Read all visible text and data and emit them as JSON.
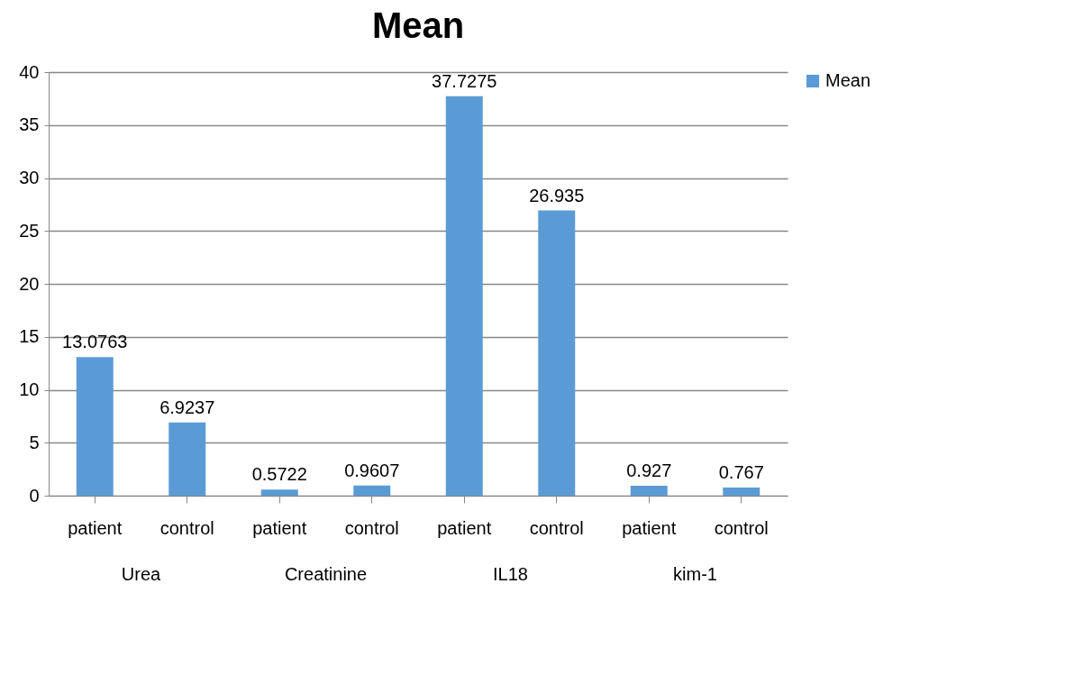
{
  "chart_data": {
    "type": "bar",
    "title": "Mean",
    "categories": [
      "patient",
      "control",
      "patient",
      "control",
      "patient",
      "control",
      "patient",
      "control"
    ],
    "series": [
      {
        "name": "Mean",
        "color": "#5b9bd5",
        "values": [
          13.0763,
          6.9237,
          0.5722,
          0.9607,
          37.7275,
          26.935,
          0.927,
          0.767
        ]
      }
    ],
    "annotations": [
      "Urea",
      "Creatinine",
      "IL18",
      "kim-1"
    ],
    "ylim": [
      0,
      40
    ],
    "yticks": [
      0,
      5,
      10,
      15,
      20,
      25,
      30,
      35,
      40
    ],
    "grid": "y",
    "legend": "right",
    "data_labels": true
  }
}
